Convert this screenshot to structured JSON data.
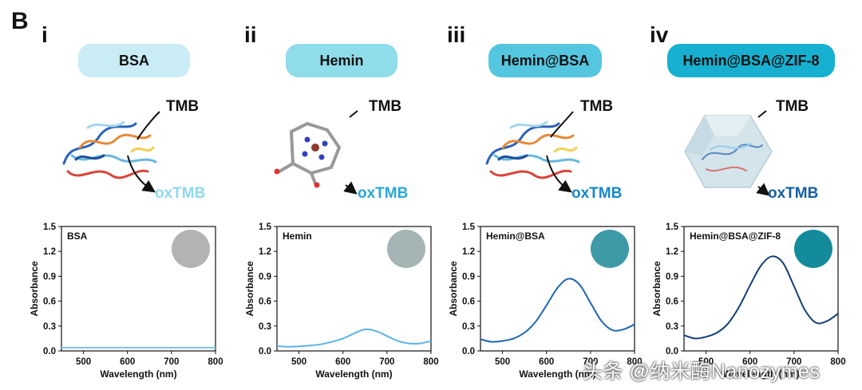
{
  "figure": {
    "panel_letter": "B",
    "watermark": "头条 @纳米酶Nanozymes"
  },
  "panels": [
    {
      "roman": "i",
      "pill_label": "BSA",
      "pill_color": "#c9ecf5",
      "tmb_label": "TMB",
      "oxtmb_label": "oxTMB",
      "oxtmb_color": "#8fd8ee",
      "well_color": "#b3b3b3"
    },
    {
      "roman": "ii",
      "pill_label": "Hemin",
      "pill_color": "#8fdceb",
      "tmb_label": "TMB",
      "oxtmb_label": "oxTMB",
      "oxtmb_color": "#2aa7d6",
      "well_color": "#a5b4b4"
    },
    {
      "roman": "iii",
      "pill_label": "Hemin@BSA",
      "pill_color": "#55c6df",
      "tmb_label": "TMB",
      "oxtmb_label": "oxTMB",
      "oxtmb_color": "#1688c9",
      "well_color": "#3d9aa6"
    },
    {
      "roman": "iv",
      "pill_label": "Hemin@BSA@ZIF-8",
      "pill_color": "#17b0d0",
      "tmb_label": "TMB",
      "oxtmb_label": "oxTMB",
      "oxtmb_color": "#155da6",
      "well_color": "#138b9a"
    }
  ],
  "chart_data": [
    {
      "type": "line",
      "title": "BSA",
      "xlabel": "Wavelength (nm)",
      "ylabel": "Absorbance",
      "xlim": [
        450,
        800
      ],
      "ylim": [
        0,
        1.5
      ],
      "xticks": [
        500,
        600,
        700,
        800
      ],
      "yticks": [
        "0.0",
        "0.3",
        "0.6",
        "0.9",
        "1.2",
        "1.5"
      ],
      "line_color": "#7cc3ea",
      "x": [
        450,
        500,
        550,
        600,
        650,
        700,
        750,
        800
      ],
      "y": [
        0.04,
        0.04,
        0.04,
        0.04,
        0.04,
        0.04,
        0.04,
        0.04
      ]
    },
    {
      "type": "line",
      "title": "Hemin",
      "xlabel": "Wavelength (nm)",
      "ylabel": "Absorbance",
      "xlim": [
        450,
        800
      ],
      "ylim": [
        0,
        1.5
      ],
      "xticks": [
        500,
        600,
        700,
        800
      ],
      "yticks": [
        "0.0",
        "0.3",
        "0.6",
        "0.9",
        "1.2",
        "1.5"
      ],
      "line_color": "#5ab4ea",
      "x": [
        450,
        475,
        500,
        525,
        550,
        575,
        600,
        625,
        650,
        675,
        700,
        725,
        750,
        775,
        800
      ],
      "y": [
        0.06,
        0.05,
        0.055,
        0.065,
        0.08,
        0.11,
        0.15,
        0.21,
        0.26,
        0.24,
        0.18,
        0.12,
        0.09,
        0.09,
        0.12
      ]
    },
    {
      "type": "line",
      "title": "Hemin@BSA",
      "xlabel": "Wavelength (nm)",
      "ylabel": "Absorbance",
      "xlim": [
        450,
        800
      ],
      "ylim": [
        0,
        1.5
      ],
      "xticks": [
        500,
        600,
        700,
        800
      ],
      "yticks": [
        "0.0",
        "0.3",
        "0.6",
        "0.9",
        "1.2",
        "1.5"
      ],
      "line_color": "#1f66b0",
      "x": [
        450,
        475,
        500,
        525,
        550,
        575,
        600,
        625,
        650,
        675,
        700,
        725,
        750,
        775,
        800
      ],
      "y": [
        0.14,
        0.11,
        0.12,
        0.15,
        0.22,
        0.35,
        0.55,
        0.76,
        0.87,
        0.8,
        0.58,
        0.36,
        0.25,
        0.26,
        0.32
      ]
    },
    {
      "type": "line",
      "title": "Hemin@BSA@ZIF-8",
      "xlabel": "Wavelength (nm)",
      "ylabel": "Absorbance",
      "xlim": [
        450,
        800
      ],
      "ylim": [
        0,
        1.5
      ],
      "xticks": [
        500,
        600,
        700,
        800
      ],
      "yticks": [
        "0.0",
        "0.3",
        "0.6",
        "0.9",
        "1.2",
        "1.5"
      ],
      "line_color": "#123f73",
      "x": [
        450,
        475,
        500,
        525,
        550,
        575,
        600,
        625,
        650,
        675,
        700,
        725,
        750,
        775,
        800
      ],
      "y": [
        0.19,
        0.15,
        0.17,
        0.22,
        0.33,
        0.53,
        0.79,
        1.03,
        1.14,
        1.06,
        0.78,
        0.49,
        0.34,
        0.36,
        0.45
      ]
    }
  ]
}
